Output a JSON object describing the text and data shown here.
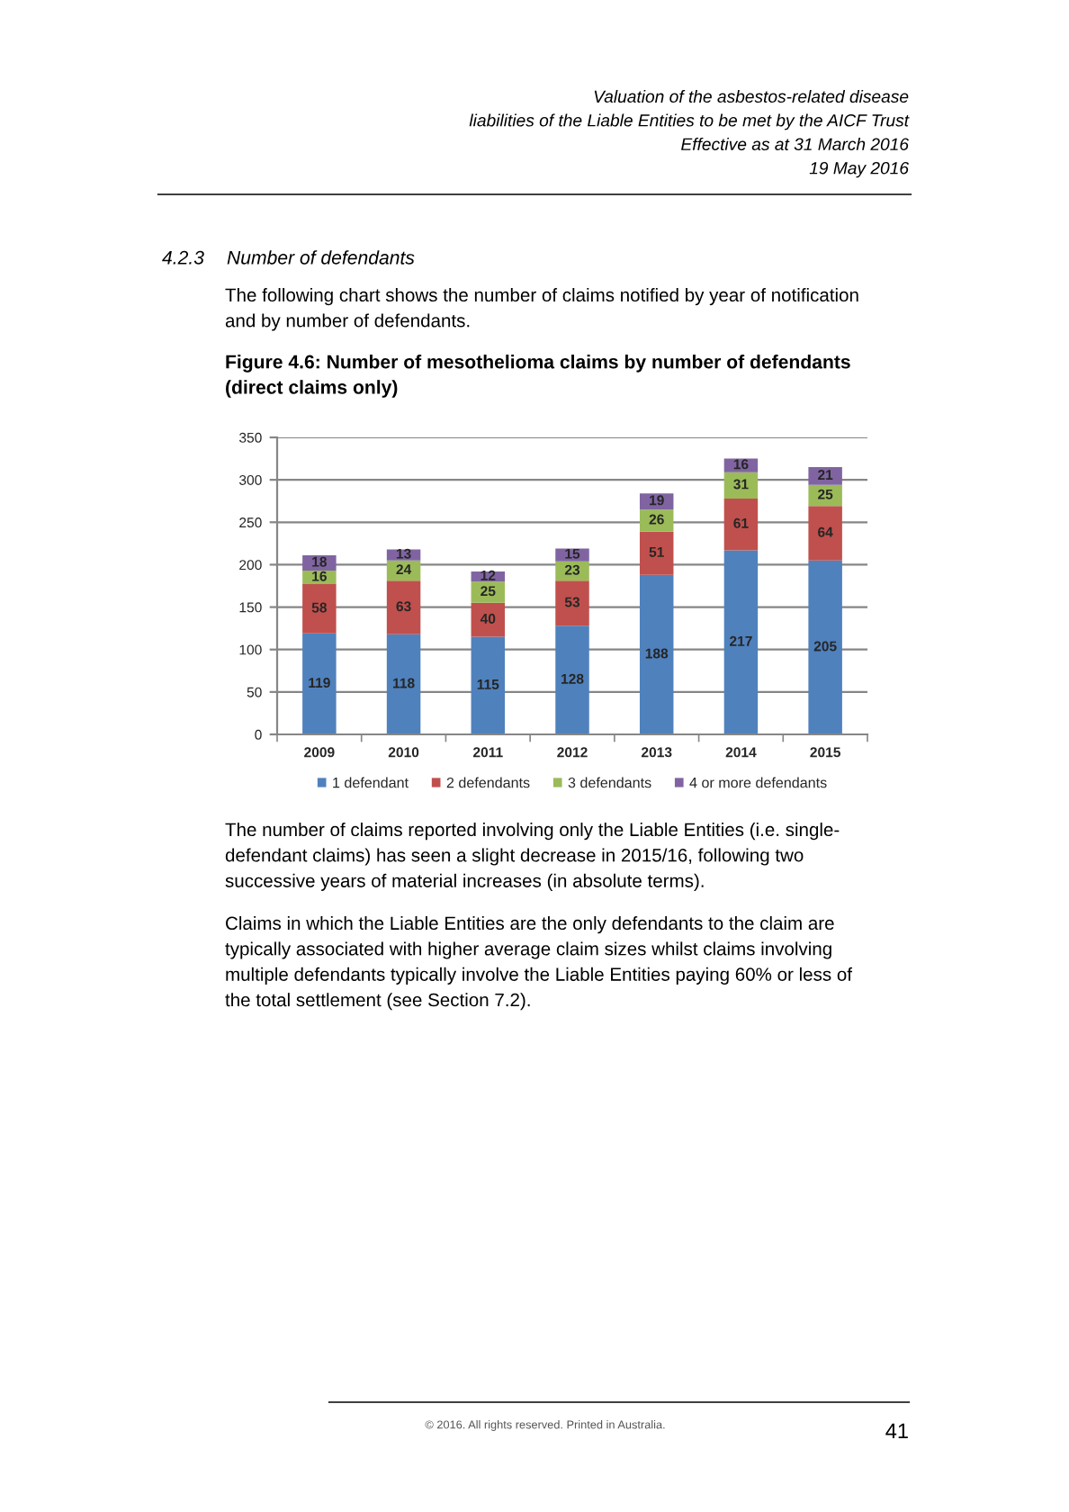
{
  "chart_data": {
    "type": "bar",
    "title": "Figure 4.6: Number of mesothelioma claims by number of defendants\n(direct claims only)",
    "categories": [
      "2009",
      "2010",
      "2011",
      "2012",
      "2013",
      "2014",
      "2015"
    ],
    "series": [
      {
        "name": "1 defendant",
        "color": "#4f81bd",
        "values": [
          119,
          118,
          115,
          128,
          188,
          217,
          205
        ]
      },
      {
        "name": "2 defendants",
        "color": "#c0504d",
        "values": [
          58,
          63,
          40,
          53,
          51,
          61,
          64
        ]
      },
      {
        "name": "3 defendants",
        "color": "#9bbb59",
        "values": [
          16,
          24,
          25,
          23,
          26,
          31,
          25
        ]
      },
      {
        "name": "4 or more defendants",
        "color": "#8064a2",
        "values": [
          18,
          13,
          12,
          15,
          19,
          16,
          21
        ]
      }
    ],
    "stacked": true,
    "ylim": [
      0,
      350
    ],
    "yticks": [
      0,
      50,
      100,
      150,
      200,
      250,
      300,
      350
    ],
    "grid": "y",
    "legend": "bottom",
    "data_labels": true,
    "annotations": [
      "Valuation of the asbestos-related disease\nliabilities of the Liable Entities to be met by the AICF Trust\nEffective as at 31 March 2016\n19 May 2016",
      "4.2.3",
      "Number of defendants",
      "The following chart shows the number of claims notified by year of notification\nand by number of defendants.",
      "The number of claims reported involving only the Liable Entities (i.e. single-\ndefendant claims) has seen a slight decrease in 2015/16, following two\nsuccessive years of material increases (in absolute terms).",
      "Claims in which the Liable Entities are the only defendants to the claim are\ntypically associated with higher average claim sizes whilst claims involving\nmultiple defendants typically involve the Liable Entities paying 60% or less of\nthe total settlement (see Section 7.2).",
      "© 2016. All rights reserved. Printed in Australia.",
      "41"
    ]
  }
}
